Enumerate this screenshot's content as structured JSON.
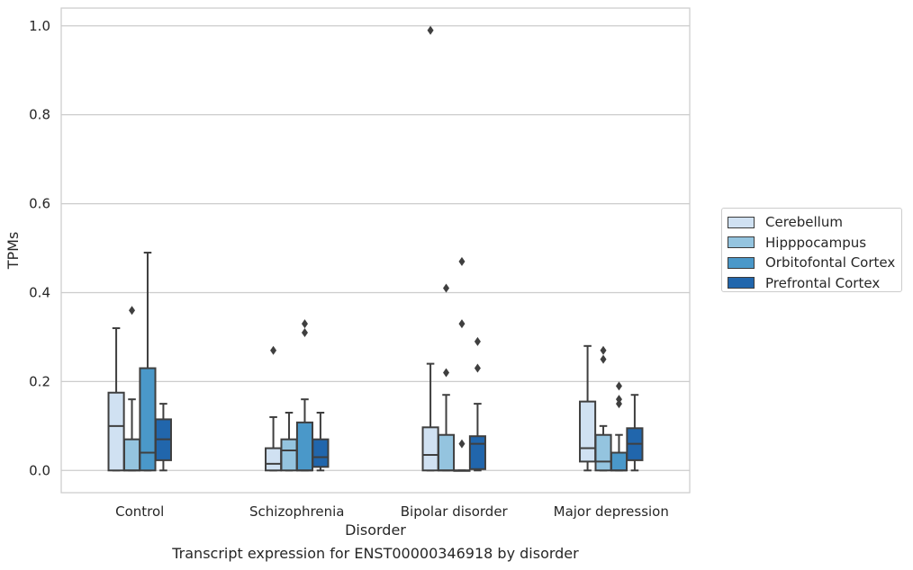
{
  "caption": "Transcript expression for ENST00000346918 by disorder",
  "chart_data": {
    "type": "box",
    "xlabel": "Disorder",
    "ylabel": "TPMs",
    "categories": [
      "Control",
      "Schizophrenia",
      "Bipolar disorder",
      "Major depression"
    ],
    "ylim": [
      -0.05,
      1.04
    ],
    "yticks": [
      0.0,
      0.2,
      0.4,
      0.6,
      0.8,
      1.0
    ],
    "ytick_labels": [
      "0.0",
      "0.2",
      "0.4",
      "0.6",
      "0.8",
      "1.0"
    ],
    "grid": "horizontal",
    "legend_position": "right",
    "series": [
      {
        "name": "Cerebellum",
        "color": "#d0e1f2",
        "boxes": [
          {
            "whisker_low": 0.0,
            "q1": 0.0,
            "median": 0.1,
            "q3": 0.175,
            "whisker_high": 0.32,
            "outliers": []
          },
          {
            "whisker_low": 0.0,
            "q1": 0.0,
            "median": 0.015,
            "q3": 0.05,
            "whisker_high": 0.12,
            "outliers": [
              0.27
            ]
          },
          {
            "whisker_low": 0.0,
            "q1": 0.0,
            "median": 0.035,
            "q3": 0.097,
            "whisker_high": 0.24,
            "outliers": [
              0.99
            ]
          },
          {
            "whisker_low": 0.0,
            "q1": 0.02,
            "median": 0.05,
            "q3": 0.155,
            "whisker_high": 0.28,
            "outliers": []
          }
        ]
      },
      {
        "name": "Hipppocampus",
        "color": "#94c4df",
        "boxes": [
          {
            "whisker_low": 0.0,
            "q1": 0.0,
            "median": 0.0,
            "q3": 0.07,
            "whisker_high": 0.16,
            "outliers": [
              0.36
            ]
          },
          {
            "whisker_low": 0.0,
            "q1": 0.0,
            "median": 0.045,
            "q3": 0.07,
            "whisker_high": 0.13,
            "outliers": []
          },
          {
            "whisker_low": 0.0,
            "q1": 0.0,
            "median": 0.0,
            "q3": 0.08,
            "whisker_high": 0.17,
            "outliers": [
              0.22,
              0.41
            ]
          },
          {
            "whisker_low": 0.0,
            "q1": 0.0,
            "median": 0.02,
            "q3": 0.08,
            "whisker_high": 0.1,
            "outliers": [
              0.25,
              0.27
            ]
          }
        ]
      },
      {
        "name": "Orbitofontal Cortex",
        "color": "#4a98c9",
        "boxes": [
          {
            "whisker_low": 0.0,
            "q1": 0.0,
            "median": 0.04,
            "q3": 0.23,
            "whisker_high": 0.49,
            "outliers": []
          },
          {
            "whisker_low": 0.0,
            "q1": 0.0,
            "median": 0.0,
            "q3": 0.108,
            "whisker_high": 0.16,
            "outliers": [
              0.31,
              0.33
            ]
          },
          {
            "whisker_low": 0.0,
            "q1": 0.0,
            "median": 0.0,
            "q3": 0.0,
            "whisker_high": 0.0,
            "outliers": [
              0.06,
              0.33,
              0.47
            ]
          },
          {
            "whisker_low": 0.0,
            "q1": 0.0,
            "median": 0.0,
            "q3": 0.04,
            "whisker_high": 0.08,
            "outliers": [
              0.15,
              0.16,
              0.19
            ]
          }
        ]
      },
      {
        "name": "Prefrontal Cortex",
        "color": "#2166ac",
        "boxes": [
          {
            "whisker_low": 0.0,
            "q1": 0.023,
            "median": 0.07,
            "q3": 0.115,
            "whisker_high": 0.15,
            "outliers": []
          },
          {
            "whisker_low": 0.0,
            "q1": 0.008,
            "median": 0.03,
            "q3": 0.07,
            "whisker_high": 0.13,
            "outliers": []
          },
          {
            "whisker_low": 0.0,
            "q1": 0.003,
            "median": 0.06,
            "q3": 0.077,
            "whisker_high": 0.15,
            "outliers": [
              0.23,
              0.29
            ]
          },
          {
            "whisker_low": 0.0,
            "q1": 0.023,
            "median": 0.06,
            "q3": 0.095,
            "whisker_high": 0.17,
            "outliers": []
          }
        ]
      }
    ]
  }
}
